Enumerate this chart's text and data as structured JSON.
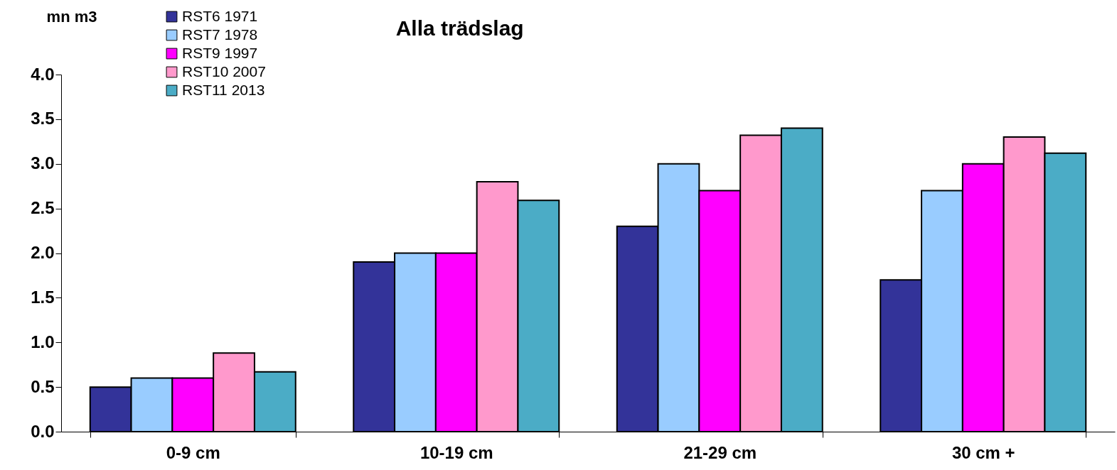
{
  "chart_data": {
    "type": "bar",
    "title": "Alla trädslag",
    "ylabel": "mn m3",
    "categories": [
      "0-9 cm",
      "10-19 cm",
      "21-29 cm",
      "30 cm +"
    ],
    "series": [
      {
        "name": "RST6 1971",
        "color": "#333399",
        "values": [
          0.5,
          1.9,
          2.3,
          1.7
        ]
      },
      {
        "name": "RST7 1978",
        "color": "#99ccff",
        "values": [
          0.6,
          2.0,
          3.0,
          2.7
        ]
      },
      {
        "name": "RST9 1997",
        "color": "#ff00ff",
        "values": [
          0.6,
          2.0,
          2.7,
          3.0
        ]
      },
      {
        "name": "RST10 2007",
        "color": "#ff99cc",
        "values": [
          0.88,
          2.8,
          3.32,
          3.3
        ]
      },
      {
        "name": "RST11 2013",
        "color": "#4bacc6",
        "values": [
          0.67,
          2.59,
          3.4,
          3.12
        ]
      }
    ],
    "ylim": [
      0,
      4.0
    ],
    "yticks": [
      {
        "value": 0,
        "label": "0.0"
      },
      {
        "value": 0.5,
        "label": "0.5"
      },
      {
        "value": 1,
        "label": "1.0"
      },
      {
        "value": 1.5,
        "label": "1.5"
      },
      {
        "value": 2,
        "label": "2.0"
      },
      {
        "value": 2.5,
        "label": "2.5"
      },
      {
        "value": 3,
        "label": "3.0"
      },
      {
        "value": 3.5,
        "label": "3.5"
      },
      {
        "value": 4,
        "label": "4.0"
      }
    ],
    "grid": false,
    "legend": "top left"
  }
}
